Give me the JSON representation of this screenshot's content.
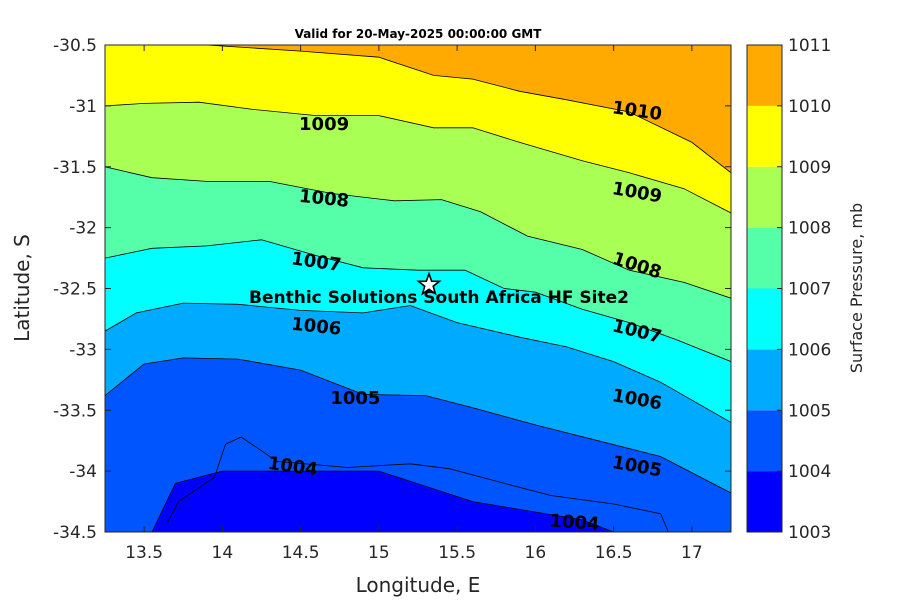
{
  "chart_data": {
    "type": "contour",
    "title": "Valid for 20-May-2025 00:00:00 GMT",
    "xlabel": "Longitude, E",
    "ylabel": "Latitude, S",
    "colorbar_label": "Surface Pressure, mb",
    "xlim": [
      13.25,
      17.25
    ],
    "ylim": [
      -34.5,
      -30.5
    ],
    "x_ticks": [
      13.5,
      14,
      14.5,
      15,
      15.5,
      16,
      16.5,
      17
    ],
    "x_tick_labels": [
      "13.5",
      "14",
      "14.5",
      "15",
      "15.5",
      "16",
      "16.5",
      "17"
    ],
    "y_ticks": [
      -30.5,
      -31,
      -31.5,
      -32,
      -32.5,
      -33,
      -33.5,
      -34,
      -34.5
    ],
    "y_tick_labels": [
      "-30.5",
      "-31",
      "-31.5",
      "-32",
      "-32.5",
      "-33",
      "-33.5",
      "-34",
      "-34.5"
    ],
    "levels": [
      1003,
      1004,
      1005,
      1006,
      1007,
      1008,
      1009,
      1010,
      1011
    ],
    "level_labels": [
      "1003",
      "1004",
      "1005",
      "1006",
      "1007",
      "1008",
      "1009",
      "1010",
      "1011"
    ],
    "band_colors": [
      "#0000ff",
      "#0055ff",
      "#00aaff",
      "#00ffff",
      "#55ffaa",
      "#aaff55",
      "#ffff00",
      "#ffaa00",
      "#ff5500"
    ],
    "contours": [
      {
        "level": 1004,
        "points": [
          [
            13.65,
            -34.42
          ],
          [
            13.72,
            -34.25
          ],
          [
            13.95,
            -34.05
          ],
          [
            14.02,
            -33.78
          ],
          [
            14.12,
            -33.72
          ],
          [
            14.35,
            -33.92
          ],
          [
            14.8,
            -33.97
          ],
          [
            15.2,
            -33.94
          ],
          [
            15.45,
            -33.98
          ],
          [
            15.8,
            -34.1
          ],
          [
            16.1,
            -34.2
          ],
          [
            16.5,
            -34.27
          ],
          [
            16.8,
            -34.35
          ],
          [
            16.85,
            -34.5
          ]
        ]
      },
      {
        "level": 1005,
        "points": [
          [
            13.25,
            -33.38
          ],
          [
            13.5,
            -33.12
          ],
          [
            13.75,
            -33.07
          ],
          [
            14.1,
            -33.08
          ],
          [
            14.5,
            -33.17
          ],
          [
            14.9,
            -33.37
          ],
          [
            15.3,
            -33.38
          ],
          [
            15.6,
            -33.48
          ],
          [
            16.0,
            -33.62
          ],
          [
            16.4,
            -33.75
          ],
          [
            16.8,
            -33.88
          ],
          [
            17.25,
            -34.18
          ]
        ]
      },
      {
        "level": 1006,
        "points": [
          [
            13.25,
            -32.85
          ],
          [
            13.45,
            -32.7
          ],
          [
            13.75,
            -32.62
          ],
          [
            14.1,
            -32.63
          ],
          [
            14.5,
            -32.68
          ],
          [
            14.9,
            -32.7
          ],
          [
            15.2,
            -32.64
          ],
          [
            15.5,
            -32.78
          ],
          [
            15.9,
            -32.9
          ],
          [
            16.2,
            -32.98
          ],
          [
            16.5,
            -33.1
          ],
          [
            16.8,
            -33.27
          ],
          [
            17.25,
            -33.6
          ]
        ]
      },
      {
        "level": 1007,
        "points": [
          [
            13.25,
            -32.25
          ],
          [
            13.55,
            -32.17
          ],
          [
            13.9,
            -32.15
          ],
          [
            14.25,
            -32.1
          ],
          [
            14.6,
            -32.23
          ],
          [
            14.9,
            -32.33
          ],
          [
            15.25,
            -32.35
          ],
          [
            15.55,
            -32.35
          ],
          [
            15.8,
            -32.5
          ],
          [
            16.0,
            -32.53
          ],
          [
            16.3,
            -32.67
          ],
          [
            16.6,
            -32.78
          ],
          [
            16.9,
            -32.92
          ],
          [
            17.25,
            -33.1
          ]
        ]
      },
      {
        "level": 1008,
        "points": [
          [
            13.25,
            -31.5
          ],
          [
            13.55,
            -31.59
          ],
          [
            13.9,
            -31.62
          ],
          [
            14.3,
            -31.62
          ],
          [
            14.7,
            -31.72
          ],
          [
            15.1,
            -31.78
          ],
          [
            15.4,
            -31.77
          ],
          [
            15.65,
            -31.87
          ],
          [
            15.95,
            -32.07
          ],
          [
            16.3,
            -32.18
          ],
          [
            16.6,
            -32.35
          ],
          [
            16.95,
            -32.45
          ],
          [
            17.25,
            -32.58
          ]
        ]
      },
      {
        "level": 1009,
        "points": [
          [
            13.25,
            -31.0
          ],
          [
            13.5,
            -30.98
          ],
          [
            13.85,
            -30.97
          ],
          [
            14.2,
            -31.03
          ],
          [
            14.6,
            -31.08
          ],
          [
            15.0,
            -31.08
          ],
          [
            15.35,
            -31.18
          ],
          [
            15.6,
            -31.18
          ],
          [
            15.9,
            -31.3
          ],
          [
            16.3,
            -31.45
          ],
          [
            16.6,
            -31.55
          ],
          [
            16.95,
            -31.68
          ],
          [
            17.25,
            -31.88
          ]
        ]
      },
      {
        "level": 1010,
        "points": [
          [
            13.9,
            -30.5
          ],
          [
            14.5,
            -30.55
          ],
          [
            15.0,
            -30.6
          ],
          [
            15.35,
            -30.75
          ],
          [
            15.6,
            -30.78
          ],
          [
            15.9,
            -30.88
          ],
          [
            16.2,
            -30.95
          ],
          [
            16.6,
            -31.05
          ],
          [
            17.0,
            -31.3
          ],
          [
            17.25,
            -31.55
          ]
        ]
      }
    ],
    "deep_low_points": [
      [
        13.55,
        -34.5
      ],
      [
        13.7,
        -34.1
      ],
      [
        14.0,
        -34.0
      ],
      [
        15.0,
        -34.0
      ],
      [
        15.6,
        -34.25
      ],
      [
        16.3,
        -34.4
      ],
      [
        16.5,
        -34.5
      ]
    ],
    "contour_labels": [
      {
        "text": "1004",
        "x": 14.45,
        "y": -33.96,
        "angle": 8
      },
      {
        "text": "1004",
        "x": 16.25,
        "y": -34.42,
        "angle": 4
      },
      {
        "text": "1005",
        "x": 14.85,
        "y": -33.4,
        "angle": 0
      },
      {
        "text": "1005",
        "x": 16.65,
        "y": -33.96,
        "angle": 10
      },
      {
        "text": "1006",
        "x": 14.6,
        "y": -32.81,
        "angle": 6
      },
      {
        "text": "1006",
        "x": 16.65,
        "y": -33.41,
        "angle": 10
      },
      {
        "text": "1007",
        "x": 14.6,
        "y": -32.28,
        "angle": 8
      },
      {
        "text": "1007",
        "x": 16.65,
        "y": -32.85,
        "angle": 14
      },
      {
        "text": "1008",
        "x": 14.65,
        "y": -31.76,
        "angle": 6
      },
      {
        "text": "1008",
        "x": 16.65,
        "y": -32.31,
        "angle": 18
      },
      {
        "text": "1009",
        "x": 14.65,
        "y": -31.15,
        "angle": 0
      },
      {
        "text": "1009",
        "x": 16.65,
        "y": -31.71,
        "angle": 10
      },
      {
        "text": "1010",
        "x": 16.65,
        "y": -31.04,
        "angle": 8
      }
    ],
    "site": {
      "name": "Benthic Solutions South Africa HF Site2",
      "lon": 15.32,
      "lat": -32.47
    }
  }
}
